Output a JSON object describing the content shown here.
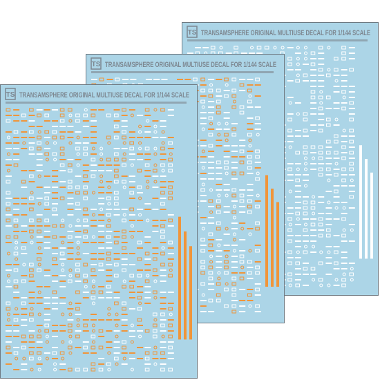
{
  "sheets": [
    {
      "logo": "TS",
      "title": "TRANSAMSPHERE ORIGINAL MULTIUSE DECAL FOR 1/144 SCALE"
    },
    {
      "logo": "TS",
      "title": "TRANSAMSPHERE ORIGINAL MULTIUSE DECAL FOR 1/144 SCALE"
    },
    {
      "logo": "TS",
      "title": "TRANSAMSPHERE ORIGINAL MULTIUSE DECAL FOR 1/144 SCALE"
    }
  ]
}
